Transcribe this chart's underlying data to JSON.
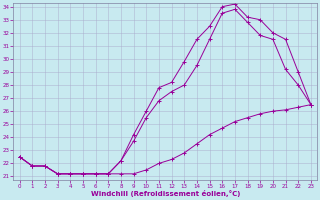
{
  "xlabel": "Windchill (Refroidissement éolien,°C)",
  "bg_color": "#c8eaf0",
  "line_color": "#990099",
  "grid_color": "#aaaacc",
  "xlim": [
    -0.5,
    23.5
  ],
  "ylim": [
    20.7,
    34.3
  ],
  "xticks": [
    0,
    1,
    2,
    3,
    4,
    5,
    6,
    7,
    8,
    9,
    10,
    11,
    12,
    13,
    14,
    15,
    16,
    17,
    18,
    19,
    20,
    21,
    22,
    23
  ],
  "yticks": [
    21,
    22,
    23,
    24,
    25,
    26,
    27,
    28,
    29,
    30,
    31,
    32,
    33,
    34
  ],
  "curve1_x": [
    0,
    1,
    2,
    3,
    4,
    5,
    6,
    7,
    8,
    9,
    10,
    11,
    12,
    13,
    14,
    15,
    16,
    17,
    18,
    19,
    20,
    21,
    22,
    23
  ],
  "curve1_y": [
    22.5,
    21.8,
    21.8,
    21.2,
    21.2,
    21.2,
    21.2,
    21.2,
    21.2,
    21.2,
    21.5,
    22.0,
    22.3,
    22.8,
    23.5,
    24.2,
    24.7,
    25.2,
    25.5,
    25.8,
    26.0,
    26.1,
    26.3,
    26.5
  ],
  "curve2_x": [
    0,
    1,
    2,
    3,
    4,
    5,
    6,
    7,
    8,
    9,
    10,
    11,
    12,
    13,
    14,
    15,
    16,
    17,
    18,
    19,
    20,
    21,
    22,
    23
  ],
  "curve2_y": [
    22.5,
    21.8,
    21.8,
    21.2,
    21.2,
    21.2,
    21.2,
    21.2,
    22.2,
    23.7,
    25.5,
    26.8,
    27.5,
    28.0,
    29.5,
    31.5,
    33.5,
    33.8,
    32.8,
    31.8,
    31.5,
    29.2,
    28.0,
    26.5
  ],
  "curve3_x": [
    0,
    1,
    2,
    3,
    4,
    5,
    6,
    7,
    8,
    9,
    10,
    11,
    12,
    13,
    14,
    15,
    16,
    17,
    18,
    19,
    20,
    21,
    22,
    23
  ],
  "curve3_y": [
    22.5,
    21.8,
    21.8,
    21.2,
    21.2,
    21.2,
    21.2,
    21.2,
    22.2,
    24.2,
    26.0,
    27.8,
    28.2,
    29.8,
    31.5,
    32.5,
    34.0,
    34.2,
    33.2,
    33.0,
    32.0,
    31.5,
    29.0,
    26.5
  ]
}
